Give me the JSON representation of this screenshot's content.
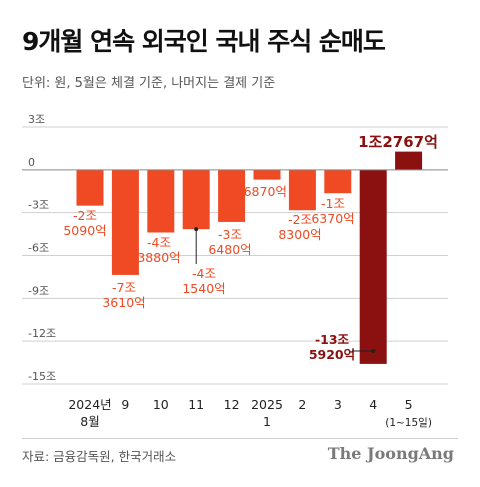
{
  "title": "9개월 연속 외국인 국내 주식 순매도",
  "unit_note": "단위: 원, 5월은 체결 기준, 나머지는 결제 기준",
  "source": "자료: 금융감독원, 한국거래소",
  "brand": "The JoongAng",
  "colors": {
    "bar": "#ef4a23",
    "highlight_bar": "#8b1010",
    "label": "#ef4a23",
    "highlight_label": "#8b1010",
    "axis_text": "#555555",
    "grid": "#d0d0d0",
    "zero_line": "#888888"
  },
  "chart_data": {
    "type": "bar",
    "title": "9개월 연속 외국인 국내 주식 순매도",
    "ylabel": "",
    "xlabel": "",
    "ylim": [
      -15,
      3
    ],
    "yticks": [
      {
        "value": 3,
        "label": "3조"
      },
      {
        "value": 0,
        "label": "0"
      },
      {
        "value": -3,
        "label": "-3조"
      },
      {
        "value": -6,
        "label": "-6조"
      },
      {
        "value": -9,
        "label": "-9조"
      },
      {
        "value": -12,
        "label": "-12조"
      },
      {
        "value": -15,
        "label": "-15조"
      }
    ],
    "grid": "horizontal",
    "categories": [
      {
        "line1": "2024년",
        "line2": "8월"
      },
      {
        "line1": "9",
        "line2": ""
      },
      {
        "line1": "10",
        "line2": ""
      },
      {
        "line1": "11",
        "line2": ""
      },
      {
        "line1": "12",
        "line2": ""
      },
      {
        "line1": "2025",
        "line2": "1"
      },
      {
        "line1": "2",
        "line2": ""
      },
      {
        "line1": "3",
        "line2": ""
      },
      {
        "line1": "4",
        "line2": ""
      },
      {
        "line1": "5",
        "line2": "(1~15일)"
      }
    ],
    "values": [
      -2.509,
      -7.361,
      -4.388,
      -4.154,
      -3.648,
      -0.687,
      -2.83,
      -1.637,
      -13.592,
      1.2767
    ],
    "labels": [
      {
        "line1": "-2조",
        "line2": "5090억"
      },
      {
        "line1": "-7조",
        "line2": "3610억"
      },
      {
        "line1": "-4조",
        "line2": "3880억"
      },
      {
        "line1": "-4조",
        "line2": "1540억"
      },
      {
        "line1": "-3조",
        "line2": "6480억"
      },
      {
        "line1": "-6870억",
        "line2": ""
      },
      {
        "line1": "-2조",
        "line2": "8300억"
      },
      {
        "line1": "-1조",
        "line2": "6370억"
      },
      {
        "line1": "-13조",
        "line2": "5920억"
      },
      {
        "line1": "1조2767억",
        "line2": ""
      }
    ],
    "highlight": [
      8,
      9
    ]
  }
}
